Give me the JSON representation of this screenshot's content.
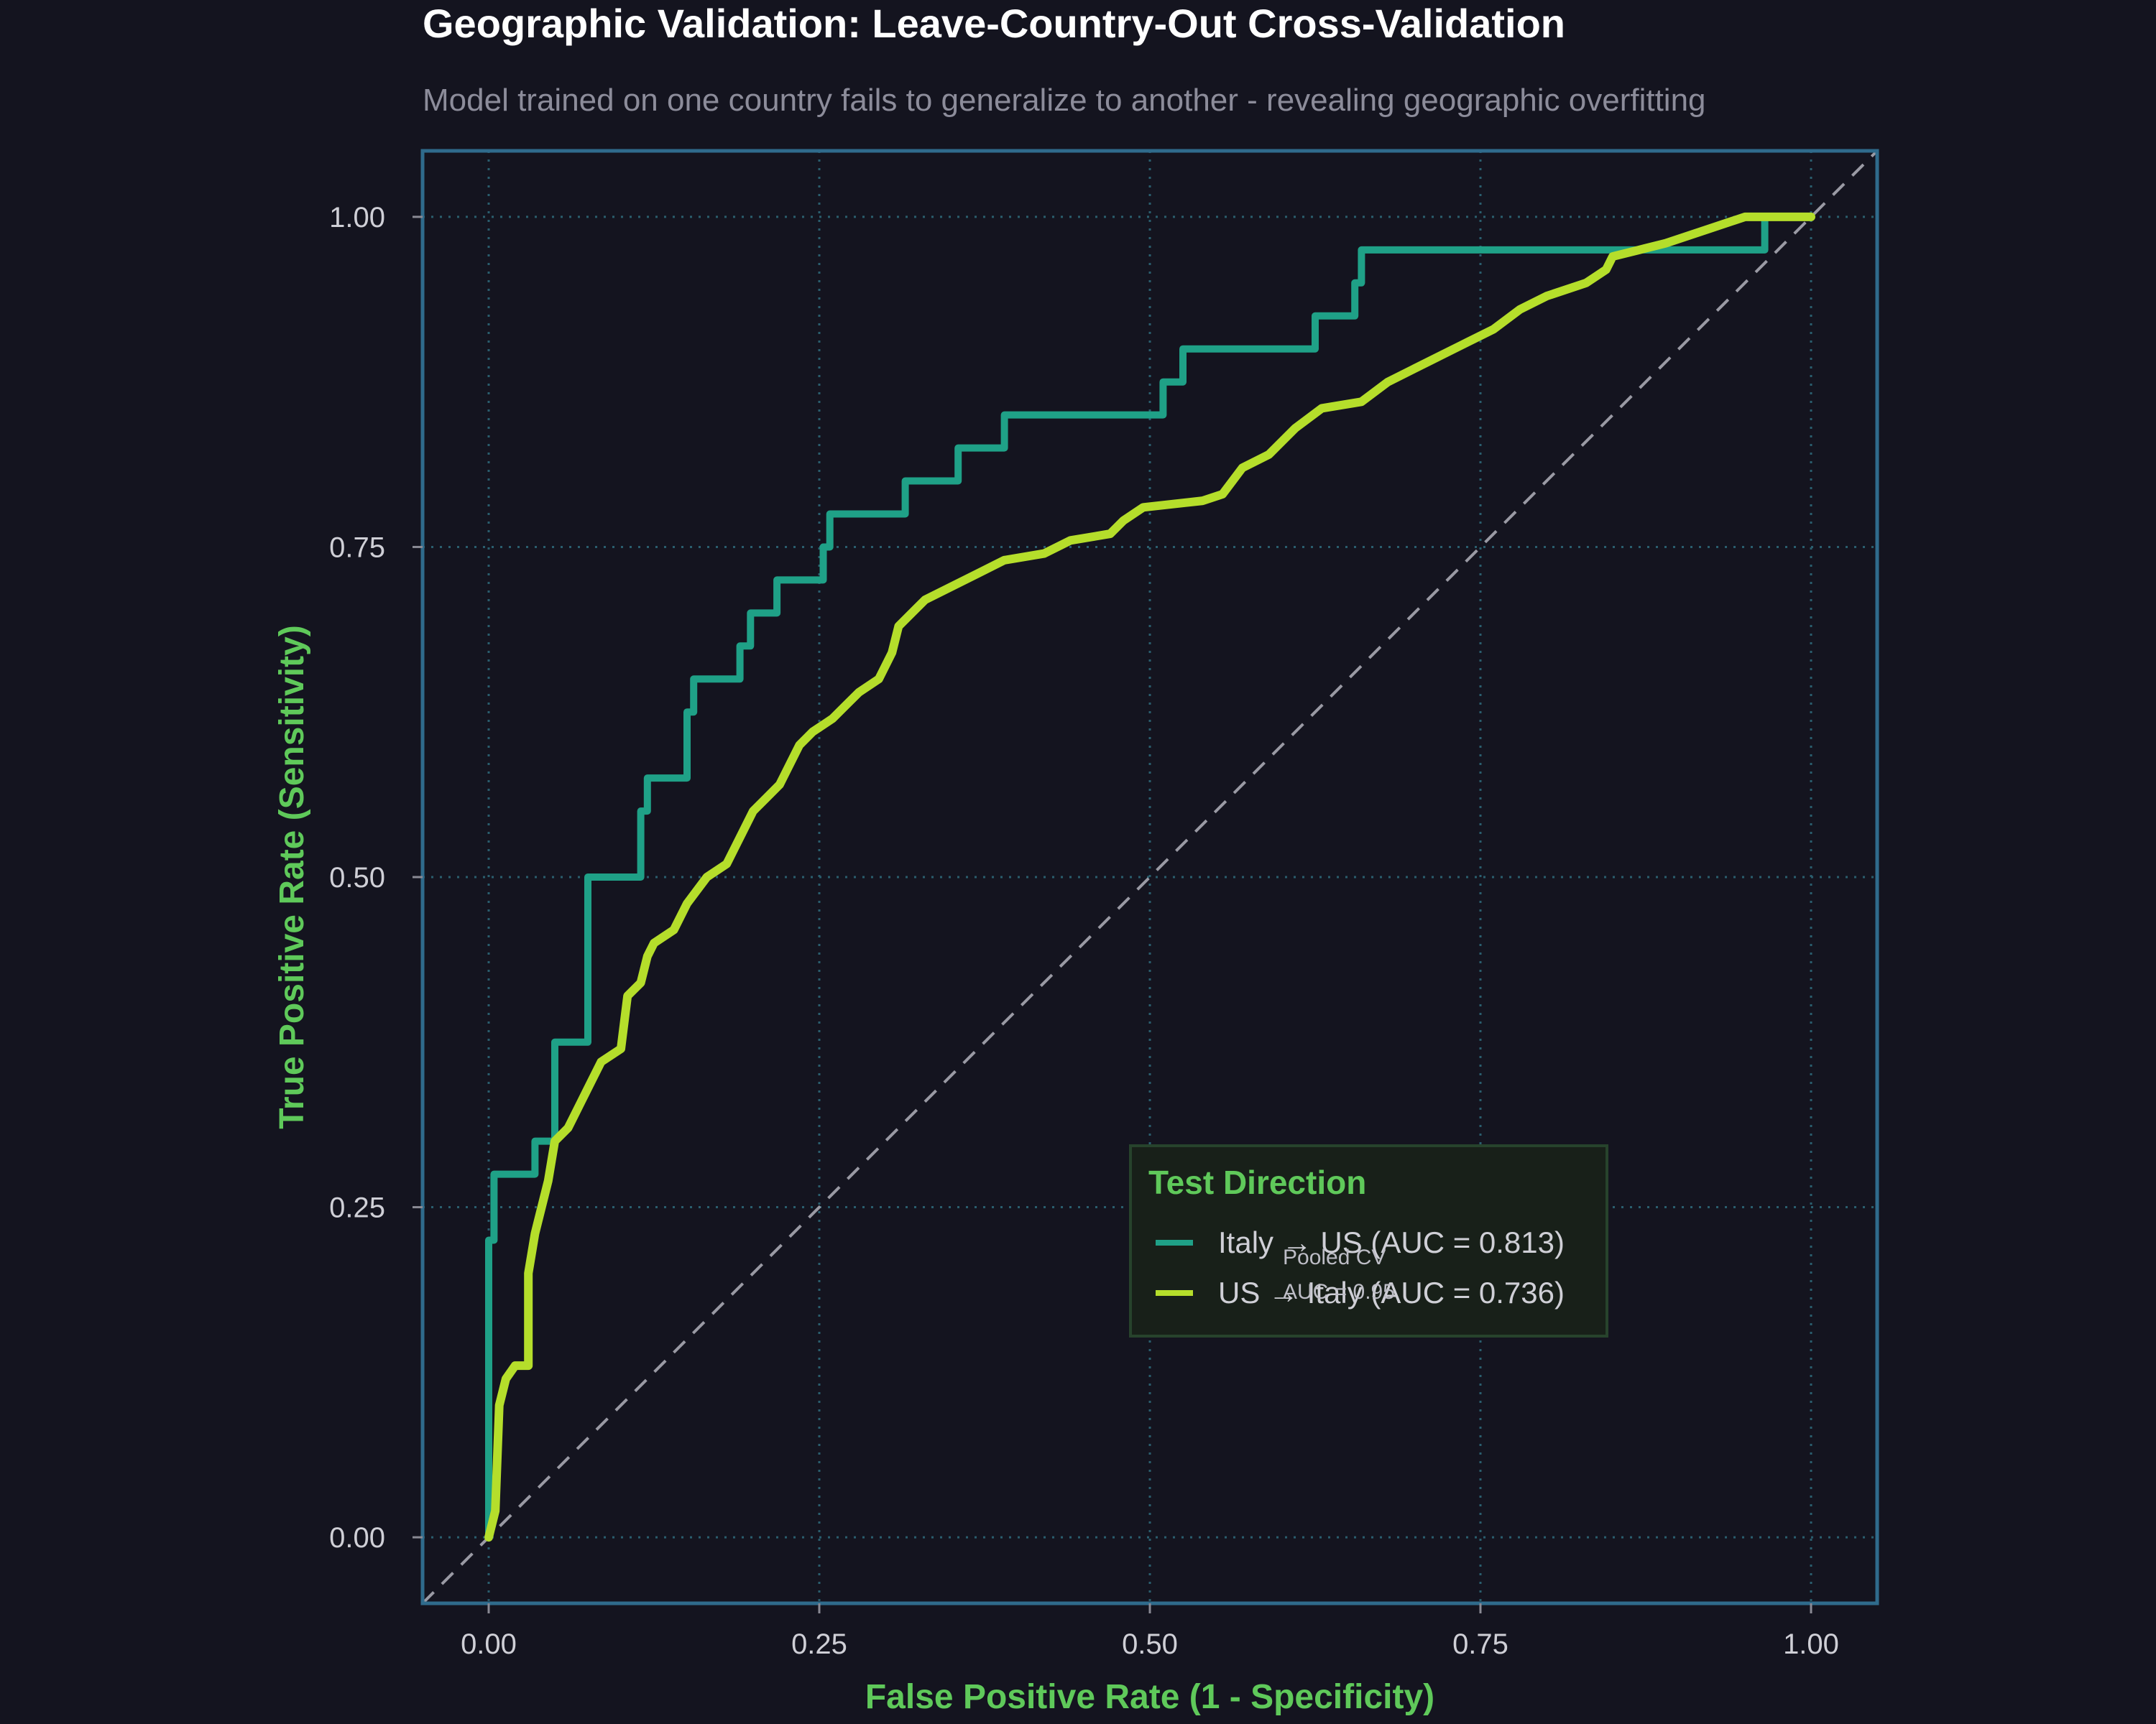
{
  "chart_data": {
    "type": "line",
    "title": "Geographic Validation: Leave-Country-Out Cross-Validation",
    "subtitle": "Model trained on one country fails to generalize to another - revealing geographic overfitting",
    "xlabel": "False Positive Rate (1 - Specificity)",
    "ylabel": "True Positive Rate (Sensitivity)",
    "xlim": [
      -0.05,
      1.05
    ],
    "ylim": [
      -0.05,
      1.05
    ],
    "xticks": [
      "0.00",
      "0.25",
      "0.50",
      "0.75",
      "1.00"
    ],
    "yticks": [
      "0.00",
      "0.25",
      "0.50",
      "0.75",
      "1.00"
    ],
    "grid": true,
    "legend": {
      "title": "Test Direction",
      "placement": "lower-right",
      "entries": [
        "Italy → US (AUC = 0.813)",
        "US → Italy (AUC = 0.736)"
      ]
    },
    "annotation": {
      "line1": "Pooled CV",
      "line2": "AUC = 0.95"
    },
    "colors": {
      "italy_us": "#1fa187",
      "us_italy": "#b5de2b",
      "diagonal": "#9a9aa4",
      "frame": "#2f6b8c",
      "grid": "#2a5e6e"
    },
    "series": [
      {
        "name": "Italy → US (AUC = 0.813)",
        "points": [
          [
            0.0,
            0.0
          ],
          [
            0.0,
            0.225
          ],
          [
            0.004,
            0.225
          ],
          [
            0.004,
            0.275
          ],
          [
            0.035,
            0.275
          ],
          [
            0.035,
            0.3
          ],
          [
            0.05,
            0.3
          ],
          [
            0.05,
            0.375
          ],
          [
            0.075,
            0.375
          ],
          [
            0.075,
            0.5
          ],
          [
            0.115,
            0.5
          ],
          [
            0.115,
            0.55
          ],
          [
            0.12,
            0.55
          ],
          [
            0.12,
            0.575
          ],
          [
            0.15,
            0.575
          ],
          [
            0.15,
            0.625
          ],
          [
            0.155,
            0.625
          ],
          [
            0.155,
            0.65
          ],
          [
            0.19,
            0.65
          ],
          [
            0.19,
            0.675
          ],
          [
            0.198,
            0.675
          ],
          [
            0.198,
            0.7
          ],
          [
            0.218,
            0.7
          ],
          [
            0.218,
            0.725
          ],
          [
            0.253,
            0.725
          ],
          [
            0.253,
            0.75
          ],
          [
            0.258,
            0.75
          ],
          [
            0.258,
            0.775
          ],
          [
            0.315,
            0.775
          ],
          [
            0.315,
            0.8
          ],
          [
            0.355,
            0.8
          ],
          [
            0.355,
            0.825
          ],
          [
            0.39,
            0.825
          ],
          [
            0.39,
            0.85
          ],
          [
            0.51,
            0.85
          ],
          [
            0.51,
            0.875
          ],
          [
            0.525,
            0.875
          ],
          [
            0.525,
            0.9
          ],
          [
            0.625,
            0.9
          ],
          [
            0.625,
            0.925
          ],
          [
            0.655,
            0.925
          ],
          [
            0.655,
            0.95
          ],
          [
            0.66,
            0.95
          ],
          [
            0.66,
            0.975
          ],
          [
            0.965,
            0.975
          ],
          [
            0.965,
            1.0
          ],
          [
            1.0,
            1.0
          ]
        ]
      },
      {
        "name": "US → Italy (AUC = 0.736)",
        "points": [
          [
            0.0,
            0.0
          ],
          [
            0.005,
            0.02
          ],
          [
            0.008,
            0.1
          ],
          [
            0.013,
            0.12
          ],
          [
            0.02,
            0.13
          ],
          [
            0.03,
            0.13
          ],
          [
            0.03,
            0.2
          ],
          [
            0.035,
            0.23
          ],
          [
            0.04,
            0.25
          ],
          [
            0.045,
            0.27
          ],
          [
            0.05,
            0.3
          ],
          [
            0.06,
            0.31
          ],
          [
            0.065,
            0.32
          ],
          [
            0.07,
            0.33
          ],
          [
            0.075,
            0.34
          ],
          [
            0.085,
            0.36
          ],
          [
            0.1,
            0.37
          ],
          [
            0.105,
            0.41
          ],
          [
            0.115,
            0.42
          ],
          [
            0.12,
            0.44
          ],
          [
            0.125,
            0.45
          ],
          [
            0.14,
            0.46
          ],
          [
            0.15,
            0.48
          ],
          [
            0.165,
            0.5
          ],
          [
            0.18,
            0.51
          ],
          [
            0.185,
            0.52
          ],
          [
            0.2,
            0.55
          ],
          [
            0.21,
            0.56
          ],
          [
            0.22,
            0.57
          ],
          [
            0.225,
            0.58
          ],
          [
            0.235,
            0.6
          ],
          [
            0.245,
            0.61
          ],
          [
            0.26,
            0.62
          ],
          [
            0.27,
            0.63
          ],
          [
            0.28,
            0.64
          ],
          [
            0.295,
            0.65
          ],
          [
            0.305,
            0.67
          ],
          [
            0.31,
            0.69
          ],
          [
            0.33,
            0.71
          ],
          [
            0.35,
            0.72
          ],
          [
            0.37,
            0.73
          ],
          [
            0.39,
            0.74
          ],
          [
            0.42,
            0.745
          ],
          [
            0.44,
            0.755
          ],
          [
            0.47,
            0.76
          ],
          [
            0.48,
            0.77
          ],
          [
            0.495,
            0.78
          ],
          [
            0.54,
            0.785
          ],
          [
            0.555,
            0.79
          ],
          [
            0.57,
            0.81
          ],
          [
            0.59,
            0.82
          ],
          [
            0.6,
            0.83
          ],
          [
            0.61,
            0.84
          ],
          [
            0.63,
            0.855
          ],
          [
            0.66,
            0.86
          ],
          [
            0.68,
            0.875
          ],
          [
            0.7,
            0.885
          ],
          [
            0.72,
            0.895
          ],
          [
            0.74,
            0.905
          ],
          [
            0.76,
            0.915
          ],
          [
            0.78,
            0.93
          ],
          [
            0.8,
            0.94
          ],
          [
            0.83,
            0.95
          ],
          [
            0.845,
            0.96
          ],
          [
            0.85,
            0.97
          ],
          [
            0.87,
            0.975
          ],
          [
            0.89,
            0.98
          ],
          [
            0.92,
            0.99
          ],
          [
            0.95,
            1.0
          ],
          [
            1.0,
            1.0
          ]
        ]
      }
    ]
  }
}
